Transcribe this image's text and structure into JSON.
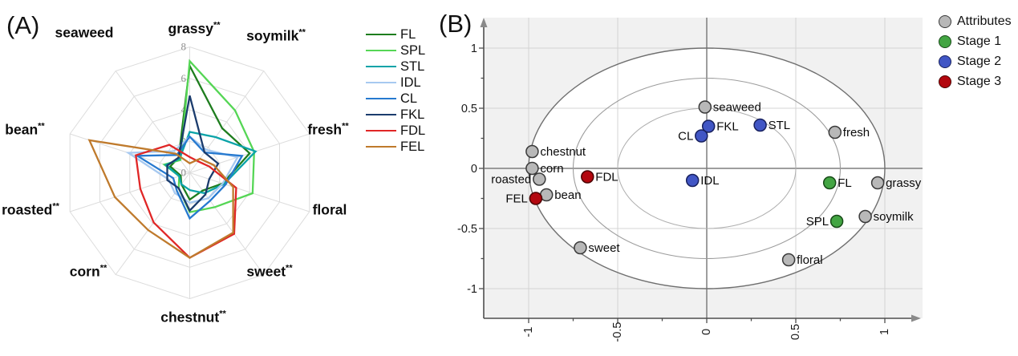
{
  "figure": {
    "panel_a_label": "(A)",
    "panel_b_label": "(B)"
  },
  "chart_data": [
    {
      "type": "radar",
      "panel": "A",
      "scale_min": 0,
      "scale_max": 8,
      "scale_ticks": [
        0,
        2,
        4,
        6,
        8
      ],
      "axes": [
        {
          "label": "grassy",
          "significance": "**"
        },
        {
          "label": "soymilk",
          "significance": "**"
        },
        {
          "label": "fresh",
          "significance": "**"
        },
        {
          "label": "floral",
          "significance": ""
        },
        {
          "label": "sweet",
          "significance": "**"
        },
        {
          "label": "chestnut",
          "significance": "**"
        },
        {
          "label": "corn",
          "significance": "**"
        },
        {
          "label": "roasted",
          "significance": "**"
        },
        {
          "label": "bean",
          "significance": "**"
        },
        {
          "label": "seaweed",
          "significance": ""
        }
      ],
      "grid_color": "#dcdcdc",
      "series": [
        {
          "name": "FL",
          "color": "#1e7d1e",
          "values": [
            6.8,
            3.5,
            4.0,
            2.2,
            1.4,
            1.7,
            0.9,
            0.6,
            1.3,
            1.2
          ]
        },
        {
          "name": "SPL",
          "color": "#55d655",
          "values": [
            7.1,
            4.9,
            4.3,
            4.2,
            2.7,
            2.5,
            1.2,
            0.7,
            1.7,
            1.0
          ]
        },
        {
          "name": "STL",
          "color": "#0aa3a8",
          "values": [
            2.6,
            2.8,
            4.4,
            2.3,
            1.6,
            1.1,
            0.9,
            0.7,
            1.6,
            1.1
          ]
        },
        {
          "name": "IDL",
          "color": "#a7c9f0",
          "values": [
            2.3,
            1.8,
            3.2,
            2.2,
            2.0,
            1.9,
            1.6,
            1.4,
            4.1,
            1.7
          ]
        },
        {
          "name": "CL",
          "color": "#2679cf",
          "values": [
            2.3,
            1.6,
            3.5,
            2.4,
            2.2,
            2.9,
            1.4,
            1.1,
            3.5,
            1.4
          ]
        },
        {
          "name": "FKL",
          "color": "#1b3c6d",
          "values": [
            4.9,
            1.6,
            1.9,
            1.3,
            1.7,
            2.4,
            1.2,
            1.5,
            1.5,
            1.2
          ]
        },
        {
          "name": "FDL",
          "color": "#e02626",
          "values": [
            1.0,
            0.9,
            1.3,
            3.1,
            4.8,
            5.4,
            3.9,
            3.3,
            3.6,
            2.2
          ]
        },
        {
          "name": "FEL",
          "color": "#bf7a2c",
          "values": [
            0.6,
            1.1,
            1.6,
            2.9,
            4.7,
            5.4,
            4.5,
            5.0,
            6.7,
            1.5
          ]
        }
      ]
    },
    {
      "type": "scatter",
      "panel": "B",
      "xlim": [
        -1.25,
        1.15
      ],
      "ylim": [
        -1.25,
        1.25
      ],
      "x_tick_labels": [
        "-1",
        "-0.5",
        "0",
        "0.5",
        "1"
      ],
      "y_tick_labels": [
        "1",
        "0.5",
        "0",
        "-0.5",
        "-1"
      ],
      "major_ticks": [
        -1,
        -0.5,
        0,
        0.5,
        1
      ],
      "minor_tick_step": 0.25,
      "ellipse_radii": [
        1,
        0.75,
        0.5
      ],
      "plot_bg_color": "#f1f1f1",
      "grid_color": "#d4d4d4",
      "axis_color": "#4d4d4d",
      "zero_line_color": "#7f7f7f",
      "groups": [
        {
          "name": "Attributes",
          "fill": "#b8b8b8",
          "stroke": "#3a3a3a",
          "points": [
            {
              "label": "seaweed",
              "x": -0.01,
              "y": 0.51,
              "label_side": "right"
            },
            {
              "label": "chestnut",
              "x": -0.98,
              "y": 0.14,
              "label_side": "right"
            },
            {
              "label": "corn",
              "x": -0.98,
              "y": 0.0,
              "label_side": "right"
            },
            {
              "label": "roasted",
              "x": -0.94,
              "y": -0.09,
              "label_side": "left"
            },
            {
              "label": "bean",
              "x": -0.9,
              "y": -0.22,
              "label_side": "right"
            },
            {
              "label": "sweet",
              "x": -0.71,
              "y": -0.66,
              "label_side": "right"
            },
            {
              "label": "fresh",
              "x": 0.72,
              "y": 0.3,
              "label_side": "right"
            },
            {
              "label": "grassy",
              "x": 0.96,
              "y": -0.12,
              "label_side": "right"
            },
            {
              "label": "soymilk",
              "x": 0.89,
              "y": -0.4,
              "label_side": "right"
            },
            {
              "label": "floral",
              "x": 0.46,
              "y": -0.76,
              "label_side": "right"
            }
          ]
        },
        {
          "name": "Stage 1",
          "fill": "#43a543",
          "stroke": "#184a18",
          "points": [
            {
              "label": "FL",
              "x": 0.69,
              "y": -0.12,
              "label_side": "right"
            },
            {
              "label": "SPL",
              "x": 0.73,
              "y": -0.44,
              "label_side": "left"
            }
          ]
        },
        {
          "name": "Stage 2",
          "fill": "#4156c5",
          "stroke": "#18215e",
          "points": [
            {
              "label": "FKL",
              "x": 0.01,
              "y": 0.35,
              "label_side": "right"
            },
            {
              "label": "CL",
              "x": -0.03,
              "y": 0.27,
              "label_side": "left"
            },
            {
              "label": "STL",
              "x": 0.3,
              "y": 0.36,
              "label_side": "right"
            },
            {
              "label": "IDL",
              "x": -0.08,
              "y": -0.1,
              "label_side": "right"
            }
          ]
        },
        {
          "name": "Stage 3",
          "fill": "#b3070f",
          "stroke": "#4c0202",
          "points": [
            {
              "label": "FDL",
              "x": -0.67,
              "y": -0.07,
              "label_side": "right"
            },
            {
              "label": "FEL",
              "x": -0.96,
              "y": -0.25,
              "label_side": "left"
            }
          ]
        }
      ]
    }
  ]
}
